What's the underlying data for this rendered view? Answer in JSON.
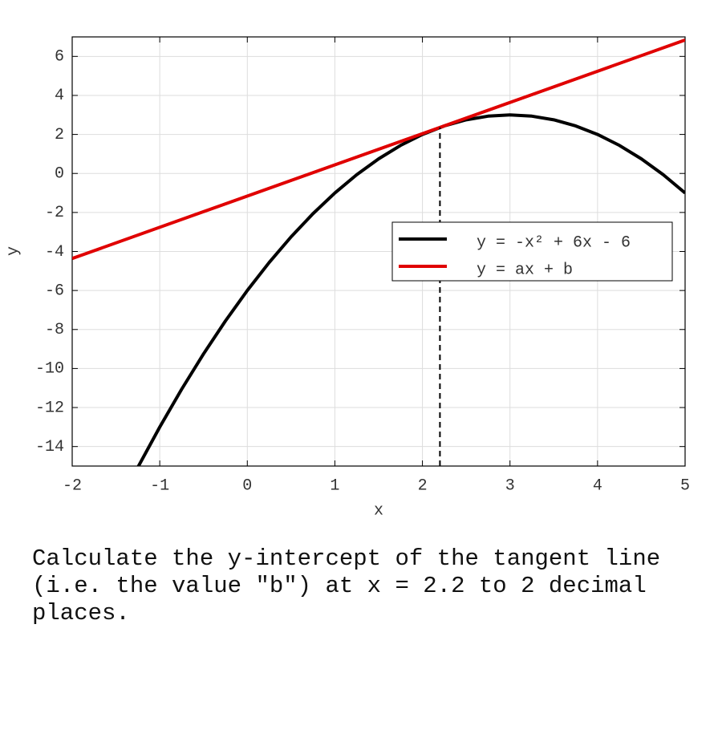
{
  "chart_data": {
    "type": "line",
    "xlabel": "x",
    "ylabel": "y",
    "xlim": [
      -2,
      5
    ],
    "ylim": [
      -15,
      7
    ],
    "xticks": [
      -2,
      -1,
      0,
      1,
      2,
      3,
      4,
      5
    ],
    "yticks": [
      -14,
      -12,
      -10,
      -8,
      -6,
      -4,
      -2,
      0,
      2,
      4,
      6
    ],
    "grid": true,
    "legend": "right",
    "series": [
      {
        "name": "y = -x² + 6x - 6",
        "color": "#000000",
        "x": [
          -1.25,
          -1,
          -0.75,
          -0.5,
          -0.25,
          0,
          0.25,
          0.5,
          0.75,
          1,
          1.25,
          1.5,
          1.75,
          2,
          2.25,
          2.5,
          2.75,
          3,
          3.25,
          3.5,
          3.75,
          4,
          4.25,
          4.5,
          4.75,
          5
        ],
        "values": [
          -15.0625,
          -13,
          -11.0625,
          -9.25,
          -7.5625,
          -6,
          -4.5625,
          -3.25,
          -2.0625,
          -1,
          -0.0625,
          0.75,
          1.4375,
          2,
          2.4375,
          2.75,
          2.9375,
          3,
          2.9375,
          2.75,
          2.4375,
          2,
          1.4375,
          0.75,
          -0.0625,
          -1
        ]
      },
      {
        "name": "y = ax + b",
        "color": "#e00000",
        "x": [
          -2,
          5
        ],
        "values": [
          -4.36,
          6.84
        ]
      }
    ],
    "marker": {
      "x": 2.2,
      "y": 2.36
    }
  },
  "question": "Calculate the y-intercept of the tangent line (i.e. the value \"b\") at x = 2.2 to 2 decimal places."
}
